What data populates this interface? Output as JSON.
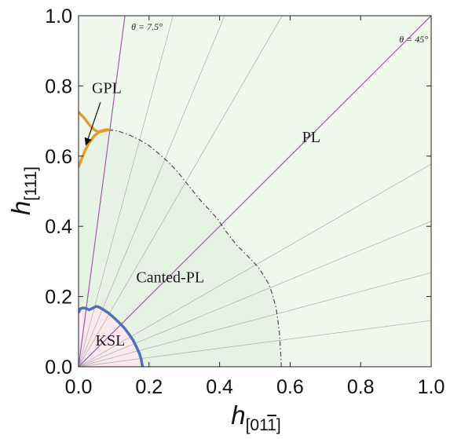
{
  "chart_data": {
    "type": "phase-diagram",
    "title": "",
    "x_axis": {
      "label_main": "h",
      "label_sub": "[01",
      "label_sub_bar": "1",
      "label_sub_close": "]",
      "range": [
        0,
        1
      ],
      "ticks": [
        0.0,
        0.2,
        0.4,
        0.6,
        0.8,
        1.0
      ],
      "tick_labels": [
        "0.0",
        "0.2",
        "0.4",
        "0.6",
        "0.8",
        "1.0"
      ]
    },
    "y_axis": {
      "label_main": "h",
      "label_sub": "[111]",
      "range": [
        0,
        1
      ],
      "ticks": [
        0.0,
        0.2,
        0.4,
        0.6,
        0.8,
        1.0
      ],
      "tick_labels": [
        "0.0",
        "0.2",
        "0.4",
        "0.6",
        "0.8",
        "1.0"
      ]
    },
    "regions": [
      {
        "name": "KSL",
        "color": "#fbe9ee",
        "label_at": [
          0.09,
          0.06
        ]
      },
      {
        "name": "Canted-PL",
        "color": "#e6f3e4",
        "label_at": [
          0.26,
          0.24
        ]
      },
      {
        "name": "PL",
        "color": "#f0f8ee",
        "label_at": [
          0.66,
          0.64
        ]
      },
      {
        "name": "GPL",
        "color": "#f0f8ee",
        "label_at": [
          0.08,
          0.78
        ]
      }
    ],
    "boundaries": [
      {
        "name": "KSL boundary",
        "color": "#4f73b5",
        "style": "solid",
        "points": [
          [
            0,
            0.155
          ],
          [
            0.005,
            0.165
          ],
          [
            0.013,
            0.168
          ],
          [
            0.022,
            0.166
          ],
          [
            0.03,
            0.162
          ],
          [
            0.04,
            0.167
          ],
          [
            0.05,
            0.172
          ],
          [
            0.058,
            0.17
          ],
          [
            0.07,
            0.163
          ],
          [
            0.085,
            0.153
          ],
          [
            0.1,
            0.14
          ],
          [
            0.115,
            0.126
          ],
          [
            0.13,
            0.11
          ],
          [
            0.143,
            0.093
          ],
          [
            0.155,
            0.075
          ],
          [
            0.165,
            0.055
          ],
          [
            0.173,
            0.037
          ],
          [
            0.178,
            0.02
          ],
          [
            0.18,
            0.008
          ],
          [
            0.182,
            0
          ]
        ]
      },
      {
        "name": "Canted-PL boundary",
        "color": "#4a4a4a",
        "style": "dashdot",
        "points": [
          [
            0.085,
            0.675
          ],
          [
            0.11,
            0.672
          ],
          [
            0.14,
            0.662
          ],
          [
            0.17,
            0.648
          ],
          [
            0.2,
            0.63
          ],
          [
            0.23,
            0.605
          ],
          [
            0.26,
            0.578
          ],
          [
            0.285,
            0.55
          ],
          [
            0.305,
            0.525
          ],
          [
            0.325,
            0.5
          ],
          [
            0.345,
            0.475
          ],
          [
            0.37,
            0.448
          ],
          [
            0.395,
            0.42
          ],
          [
            0.415,
            0.39
          ],
          [
            0.43,
            0.37
          ],
          [
            0.45,
            0.345
          ],
          [
            0.47,
            0.325
          ],
          [
            0.49,
            0.305
          ],
          [
            0.51,
            0.283
          ],
          [
            0.525,
            0.26
          ],
          [
            0.54,
            0.235
          ],
          [
            0.55,
            0.205
          ],
          [
            0.56,
            0.17
          ],
          [
            0.565,
            0.135
          ],
          [
            0.57,
            0.095
          ],
          [
            0.572,
            0.06
          ],
          [
            0.574,
            0.03
          ],
          [
            0.575,
            0
          ]
        ]
      },
      {
        "name": "GPL upper branch",
        "color": "#e39d2a",
        "style": "solid",
        "points": [
          [
            0,
            0.725
          ],
          [
            0.015,
            0.71
          ],
          [
            0.03,
            0.69
          ],
          [
            0.045,
            0.675
          ],
          [
            0.058,
            0.668
          ],
          [
            0.072,
            0.672
          ],
          [
            0.085,
            0.675
          ]
        ]
      },
      {
        "name": "GPL lower branch",
        "color": "#e39d2a",
        "style": "solid",
        "points": [
          [
            0,
            0.57
          ],
          [
            0.008,
            0.59
          ],
          [
            0.018,
            0.615
          ],
          [
            0.03,
            0.638
          ],
          [
            0.045,
            0.658
          ],
          [
            0.06,
            0.67
          ],
          [
            0.075,
            0.675
          ],
          [
            0.085,
            0.675
          ]
        ]
      }
    ],
    "ray_angles_deg_from_y": [
      7.5,
      15,
      22.5,
      30,
      45,
      60,
      67.5,
      75,
      82.5
    ],
    "highlighted_rays": [
      {
        "angle_deg": 7.5,
        "label": "θ = 7.5°",
        "color": "#a05aa8"
      },
      {
        "angle_deg": 45,
        "label": "θ = 45°",
        "color": "#a05aa8"
      }
    ],
    "ray_color": "#b4b4b4",
    "annotation": {
      "text": "GPL",
      "arrow_to": [
        0.022,
        0.635
      ]
    }
  }
}
